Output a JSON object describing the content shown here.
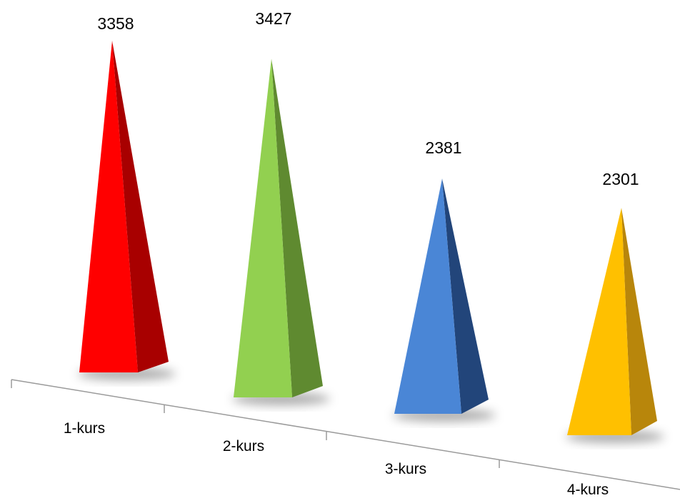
{
  "chart_data": {
    "type": "bar",
    "style": "3d-pyramid",
    "categories": [
      "1-kurs",
      "2-kurs",
      "3-kurs",
      "4-kurs"
    ],
    "values": [
      3358,
      3427,
      2381,
      2301
    ],
    "data_labels": [
      "3358",
      "3427",
      "2381",
      "2301"
    ],
    "colors": [
      "#ff0000",
      "#92d050",
      "#4a86d6",
      "#ffc000"
    ],
    "shade_colors": [
      "#a80000",
      "#5f8a30",
      "#22457a",
      "#b8860b"
    ],
    "title": "",
    "xlabel": "",
    "ylabel": "",
    "ylim": [
      0,
      3500
    ],
    "grid": false,
    "legend": "none"
  }
}
